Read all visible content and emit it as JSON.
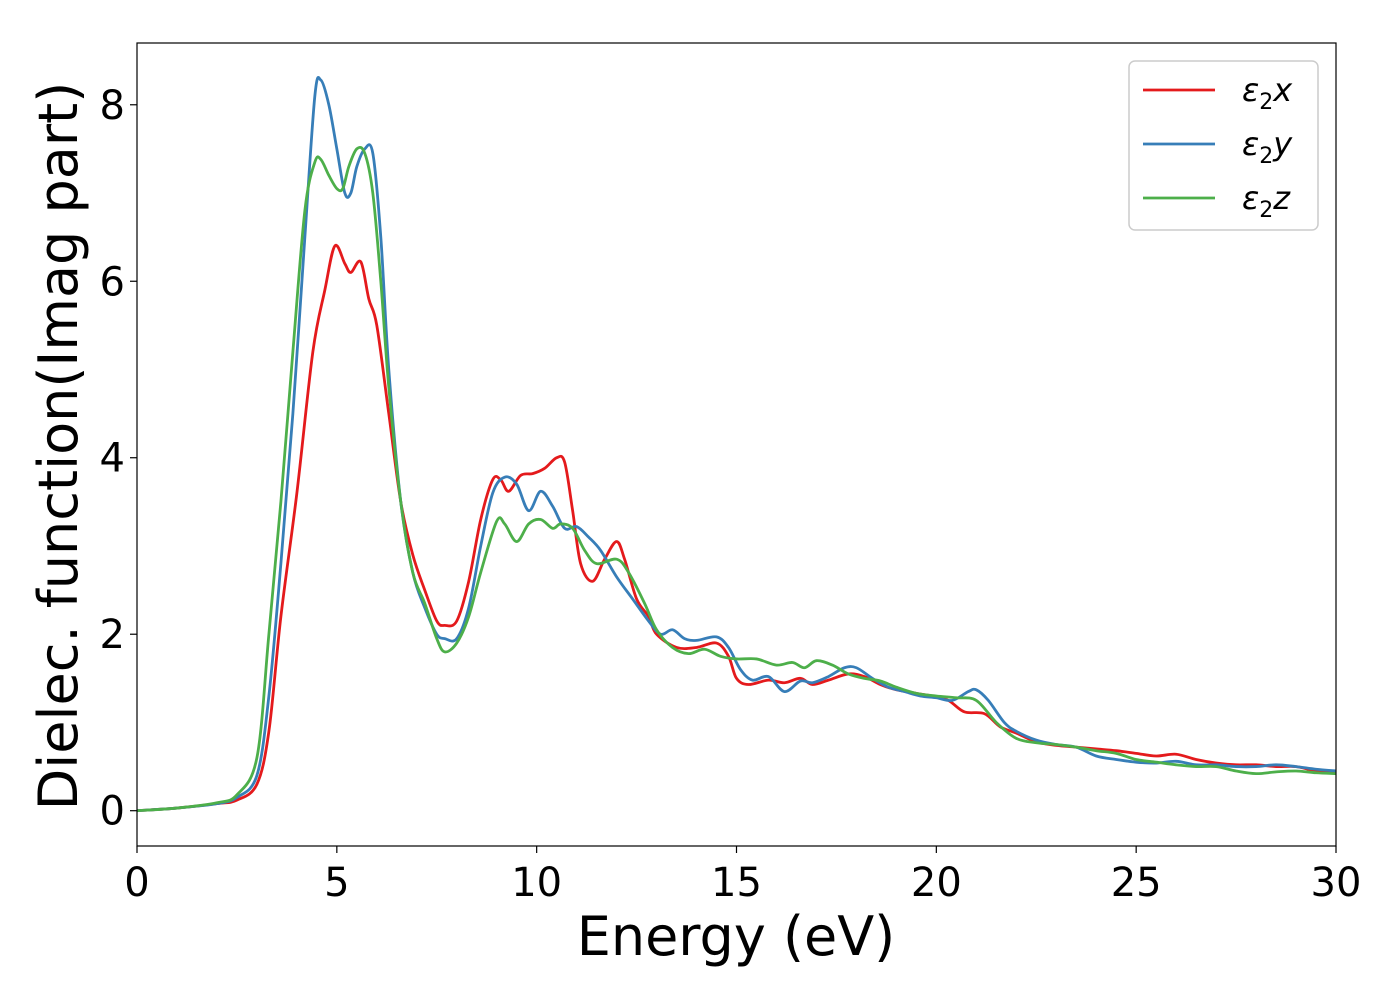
{
  "chart_data": {
    "type": "line",
    "xlabel": "Energy (eV)",
    "ylabel": "Dielec. function(Imag part)",
    "xlim": [
      0,
      30
    ],
    "ylim": [
      -0.4,
      8.7
    ],
    "xticks": [
      0,
      5,
      10,
      15,
      20,
      25,
      30
    ],
    "yticks": [
      0,
      2,
      4,
      6,
      8
    ],
    "grid": false,
    "legend_position": "top-right",
    "series": [
      {
        "name": "ε2x",
        "legend_main": "ε",
        "legend_sub": "2",
        "legend_suffix": "x",
        "color": "#e41a1c",
        "points": [
          [
            0,
            0
          ],
          [
            1,
            0.03
          ],
          [
            2,
            0.08
          ],
          [
            2.5,
            0.12
          ],
          [
            3,
            0.3
          ],
          [
            3.3,
            0.9
          ],
          [
            3.6,
            2.2
          ],
          [
            4.0,
            3.6
          ],
          [
            4.4,
            5.2
          ],
          [
            4.7,
            5.9
          ],
          [
            4.95,
            6.4
          ],
          [
            5.2,
            6.2
          ],
          [
            5.35,
            6.1
          ],
          [
            5.6,
            6.22
          ],
          [
            5.8,
            5.8
          ],
          [
            6.0,
            5.5
          ],
          [
            6.3,
            4.5
          ],
          [
            6.6,
            3.5
          ],
          [
            6.9,
            2.9
          ],
          [
            7.2,
            2.5
          ],
          [
            7.5,
            2.15
          ],
          [
            7.7,
            2.1
          ],
          [
            8.0,
            2.15
          ],
          [
            8.3,
            2.6
          ],
          [
            8.6,
            3.3
          ],
          [
            8.9,
            3.75
          ],
          [
            9.1,
            3.75
          ],
          [
            9.3,
            3.62
          ],
          [
            9.6,
            3.8
          ],
          [
            9.9,
            3.82
          ],
          [
            10.2,
            3.88
          ],
          [
            10.5,
            4.0
          ],
          [
            10.7,
            3.95
          ],
          [
            10.9,
            3.4
          ],
          [
            11.1,
            2.8
          ],
          [
            11.4,
            2.6
          ],
          [
            11.7,
            2.85
          ],
          [
            12.0,
            3.05
          ],
          [
            12.2,
            2.85
          ],
          [
            12.5,
            2.4
          ],
          [
            12.8,
            2.2
          ],
          [
            13.0,
            2.0
          ],
          [
            13.5,
            1.85
          ],
          [
            14.0,
            1.85
          ],
          [
            14.5,
            1.9
          ],
          [
            14.8,
            1.75
          ],
          [
            15.0,
            1.5
          ],
          [
            15.3,
            1.43
          ],
          [
            15.8,
            1.48
          ],
          [
            16.2,
            1.45
          ],
          [
            16.6,
            1.5
          ],
          [
            16.9,
            1.43
          ],
          [
            17.3,
            1.48
          ],
          [
            17.8,
            1.55
          ],
          [
            18.2,
            1.52
          ],
          [
            18.6,
            1.43
          ],
          [
            19.0,
            1.37
          ],
          [
            19.5,
            1.33
          ],
          [
            19.9,
            1.3
          ],
          [
            20.3,
            1.25
          ],
          [
            20.7,
            1.12
          ],
          [
            21.2,
            1.1
          ],
          [
            21.6,
            0.95
          ],
          [
            22.0,
            0.88
          ],
          [
            22.5,
            0.78
          ],
          [
            23.0,
            0.74
          ],
          [
            23.5,
            0.72
          ],
          [
            24.0,
            0.7
          ],
          [
            24.5,
            0.68
          ],
          [
            25.0,
            0.65
          ],
          [
            25.5,
            0.62
          ],
          [
            26.0,
            0.64
          ],
          [
            26.5,
            0.58
          ],
          [
            27.0,
            0.54
          ],
          [
            27.5,
            0.52
          ],
          [
            28.0,
            0.52
          ],
          [
            28.5,
            0.5
          ],
          [
            29.0,
            0.5
          ],
          [
            29.5,
            0.45
          ],
          [
            30.0,
            0.43
          ]
        ]
      },
      {
        "name": "ε2y",
        "legend_main": "ε",
        "legend_sub": "2",
        "legend_suffix": "y",
        "color": "#377eb8",
        "points": [
          [
            0,
            0
          ],
          [
            1,
            0.03
          ],
          [
            2,
            0.08
          ],
          [
            2.5,
            0.15
          ],
          [
            3,
            0.4
          ],
          [
            3.3,
            1.3
          ],
          [
            3.6,
            2.8
          ],
          [
            3.9,
            4.5
          ],
          [
            4.2,
            6.5
          ],
          [
            4.45,
            8.1
          ],
          [
            4.6,
            8.28
          ],
          [
            4.8,
            8.0
          ],
          [
            5.0,
            7.5
          ],
          [
            5.2,
            7.0
          ],
          [
            5.35,
            7.0
          ],
          [
            5.5,
            7.3
          ],
          [
            5.7,
            7.5
          ],
          [
            5.9,
            7.45
          ],
          [
            6.1,
            6.5
          ],
          [
            6.3,
            5.0
          ],
          [
            6.6,
            3.5
          ],
          [
            6.9,
            2.7
          ],
          [
            7.2,
            2.3
          ],
          [
            7.5,
            2.0
          ],
          [
            7.7,
            1.95
          ],
          [
            8.0,
            1.95
          ],
          [
            8.3,
            2.3
          ],
          [
            8.6,
            3.0
          ],
          [
            8.9,
            3.6
          ],
          [
            9.2,
            3.78
          ],
          [
            9.5,
            3.7
          ],
          [
            9.8,
            3.4
          ],
          [
            10.1,
            3.62
          ],
          [
            10.4,
            3.45
          ],
          [
            10.7,
            3.2
          ],
          [
            11.0,
            3.22
          ],
          [
            11.3,
            3.1
          ],
          [
            11.6,
            2.95
          ],
          [
            12.0,
            2.65
          ],
          [
            12.4,
            2.4
          ],
          [
            12.8,
            2.15
          ],
          [
            13.1,
            2.0
          ],
          [
            13.4,
            2.05
          ],
          [
            13.7,
            1.95
          ],
          [
            14.0,
            1.93
          ],
          [
            14.5,
            1.97
          ],
          [
            14.8,
            1.85
          ],
          [
            15.1,
            1.6
          ],
          [
            15.4,
            1.48
          ],
          [
            15.8,
            1.52
          ],
          [
            16.2,
            1.35
          ],
          [
            16.6,
            1.47
          ],
          [
            16.9,
            1.45
          ],
          [
            17.3,
            1.52
          ],
          [
            17.7,
            1.62
          ],
          [
            18.0,
            1.62
          ],
          [
            18.4,
            1.5
          ],
          [
            18.8,
            1.4
          ],
          [
            19.2,
            1.35
          ],
          [
            19.6,
            1.3
          ],
          [
            20.0,
            1.28
          ],
          [
            20.4,
            1.25
          ],
          [
            20.8,
            1.35
          ],
          [
            21.0,
            1.37
          ],
          [
            21.3,
            1.25
          ],
          [
            21.7,
            1.0
          ],
          [
            22.0,
            0.9
          ],
          [
            22.5,
            0.8
          ],
          [
            23.0,
            0.75
          ],
          [
            23.5,
            0.72
          ],
          [
            24.0,
            0.62
          ],
          [
            24.5,
            0.58
          ],
          [
            25.0,
            0.55
          ],
          [
            25.5,
            0.54
          ],
          [
            26.0,
            0.56
          ],
          [
            26.5,
            0.52
          ],
          [
            27.0,
            0.52
          ],
          [
            27.5,
            0.5
          ],
          [
            28.0,
            0.5
          ],
          [
            28.5,
            0.52
          ],
          [
            29.0,
            0.5
          ],
          [
            29.5,
            0.47
          ],
          [
            30.0,
            0.45
          ]
        ]
      },
      {
        "name": "ε2z",
        "legend_main": "ε",
        "legend_sub": "2",
        "legend_suffix": "z",
        "color": "#4daf4a",
        "points": [
          [
            0,
            0
          ],
          [
            1,
            0.03
          ],
          [
            2,
            0.09
          ],
          [
            2.5,
            0.18
          ],
          [
            3,
            0.6
          ],
          [
            3.3,
            2.0
          ],
          [
            3.6,
            3.5
          ],
          [
            3.9,
            5.2
          ],
          [
            4.2,
            6.8
          ],
          [
            4.45,
            7.35
          ],
          [
            4.6,
            7.38
          ],
          [
            4.8,
            7.2
          ],
          [
            5.0,
            7.05
          ],
          [
            5.15,
            7.05
          ],
          [
            5.3,
            7.3
          ],
          [
            5.5,
            7.5
          ],
          [
            5.7,
            7.45
          ],
          [
            5.9,
            7.0
          ],
          [
            6.1,
            6.0
          ],
          [
            6.3,
            4.8
          ],
          [
            6.6,
            3.5
          ],
          [
            6.9,
            2.7
          ],
          [
            7.2,
            2.35
          ],
          [
            7.5,
            1.95
          ],
          [
            7.7,
            1.8
          ],
          [
            8.0,
            1.9
          ],
          [
            8.3,
            2.2
          ],
          [
            8.6,
            2.7
          ],
          [
            9.0,
            3.28
          ],
          [
            9.2,
            3.25
          ],
          [
            9.5,
            3.05
          ],
          [
            9.8,
            3.25
          ],
          [
            10.1,
            3.3
          ],
          [
            10.4,
            3.2
          ],
          [
            10.6,
            3.25
          ],
          [
            10.9,
            3.2
          ],
          [
            11.2,
            2.95
          ],
          [
            11.5,
            2.8
          ],
          [
            12.0,
            2.85
          ],
          [
            12.3,
            2.7
          ],
          [
            12.7,
            2.35
          ],
          [
            13.0,
            2.05
          ],
          [
            13.4,
            1.85
          ],
          [
            13.8,
            1.78
          ],
          [
            14.2,
            1.83
          ],
          [
            14.6,
            1.75
          ],
          [
            15.0,
            1.72
          ],
          [
            15.5,
            1.72
          ],
          [
            16.0,
            1.65
          ],
          [
            16.4,
            1.68
          ],
          [
            16.7,
            1.62
          ],
          [
            17.0,
            1.7
          ],
          [
            17.4,
            1.65
          ],
          [
            17.8,
            1.55
          ],
          [
            18.2,
            1.5
          ],
          [
            18.6,
            1.47
          ],
          [
            19.0,
            1.4
          ],
          [
            19.5,
            1.33
          ],
          [
            20.0,
            1.3
          ],
          [
            20.5,
            1.28
          ],
          [
            21.0,
            1.25
          ],
          [
            21.5,
            1.0
          ],
          [
            22.0,
            0.82
          ],
          [
            22.5,
            0.77
          ],
          [
            23.0,
            0.75
          ],
          [
            23.5,
            0.72
          ],
          [
            24.0,
            0.68
          ],
          [
            24.5,
            0.65
          ],
          [
            25.0,
            0.58
          ],
          [
            25.5,
            0.55
          ],
          [
            26.0,
            0.52
          ],
          [
            26.5,
            0.5
          ],
          [
            27.0,
            0.5
          ],
          [
            27.5,
            0.45
          ],
          [
            28.0,
            0.42
          ],
          [
            28.5,
            0.44
          ],
          [
            29.0,
            0.45
          ],
          [
            29.5,
            0.43
          ],
          [
            30.0,
            0.42
          ]
        ]
      }
    ]
  }
}
